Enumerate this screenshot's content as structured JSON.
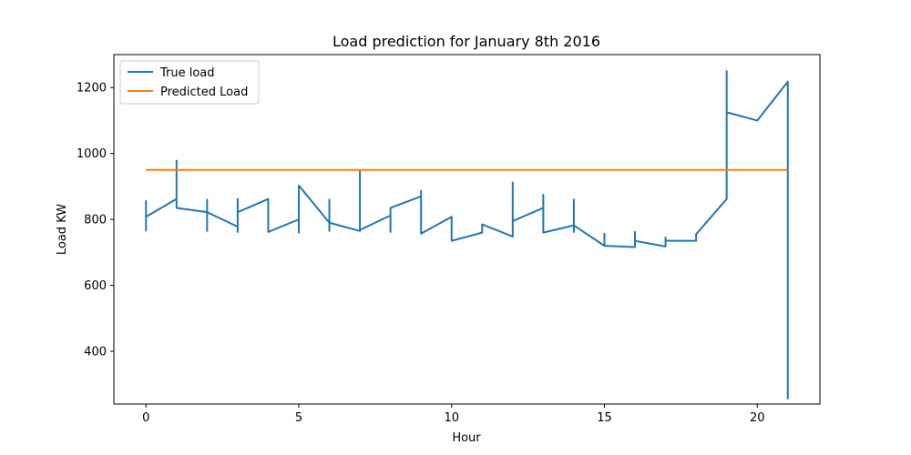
{
  "chart_data": {
    "type": "line",
    "title": "Load prediction for January 8th 2016",
    "xlabel": "Hour",
    "ylabel": "Load KW",
    "xlim": [
      -1.05,
      22.05
    ],
    "ylim": [
      240,
      1300
    ],
    "xticks": [
      0,
      5,
      10,
      15,
      20
    ],
    "yticks": [
      400,
      600,
      800,
      1000,
      1200
    ],
    "grid": false,
    "legend_position": "top-left",
    "series": [
      {
        "name": "True load",
        "color": "#1f77b4",
        "x": [
          0,
          0,
          0,
          0,
          0,
          1,
          1,
          1,
          1,
          2,
          2,
          2,
          2,
          3,
          3,
          3,
          3,
          4,
          4,
          5,
          5,
          5,
          5,
          6,
          6,
          6,
          6,
          7,
          7,
          7,
          7,
          8,
          8,
          8,
          8,
          9,
          9,
          9,
          9,
          10,
          10,
          10,
          10,
          11,
          11,
          11,
          12,
          12,
          12,
          12,
          13,
          13,
          13,
          13,
          14,
          14,
          14,
          14,
          15,
          15,
          15,
          15,
          16,
          16,
          16,
          16,
          17,
          17,
          17,
          17,
          18,
          18,
          19,
          19,
          19,
          19,
          19,
          20,
          21,
          21
        ],
        "y": [
          858,
          766,
          852,
          808,
          808,
          862,
          978,
          860,
          835,
          822,
          765,
          860,
          822,
          778,
          762,
          862,
          822,
          862,
          762,
          800,
          760,
          903,
          903,
          790,
          765,
          860,
          790,
          765,
          950,
          765,
          768,
          812,
          762,
          812,
          835,
          870,
          887,
          845,
          757,
          808,
          770,
          775,
          735,
          760,
          785,
          785,
          748,
          912,
          795,
          795,
          835,
          875,
          837,
          760,
          782,
          762,
          860,
          782,
          720,
          757,
          735,
          720,
          716,
          762,
          735,
          735,
          718,
          745,
          735,
          735,
          735,
          755,
          862,
          1250,
          1100,
          1125,
          1125,
          1100,
          1218,
          255
        ]
      },
      {
        "name": "Predicted Load",
        "color": "#ff7f0e",
        "x": [
          0,
          21
        ],
        "y": [
          950,
          950
        ]
      }
    ]
  }
}
